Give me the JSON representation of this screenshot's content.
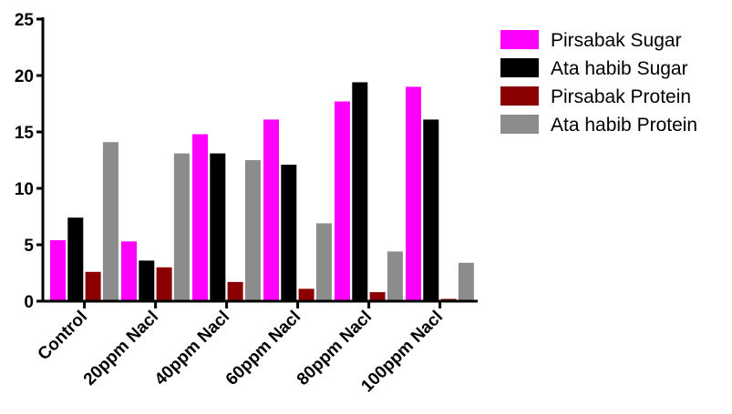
{
  "chart_data": {
    "type": "bar",
    "title": "",
    "xlabel": "",
    "ylabel": "",
    "categories": [
      "Control",
      "20ppm Nacl",
      "40ppm Nacl",
      "60ppm Nacl",
      "80ppm Nacl",
      "100ppm Nacl"
    ],
    "ylim": [
      0,
      25
    ],
    "yticks": [
      0,
      5,
      10,
      15,
      20,
      25
    ],
    "grid": false,
    "legend_position": "top-right",
    "series": [
      {
        "name": "Pirsabak Sugar",
        "color": "#ff00ff",
        "values": [
          5.4,
          5.3,
          14.8,
          16.1,
          17.7,
          19.0
        ]
      },
      {
        "name": "Ata habib Sugar",
        "color": "#000000",
        "values": [
          7.4,
          3.6,
          13.1,
          12.1,
          19.4,
          16.1
        ]
      },
      {
        "name": "Pirsabak Protein",
        "color": "#8b0000",
        "values": [
          2.6,
          3.0,
          1.7,
          1.1,
          0.8,
          0.2
        ]
      },
      {
        "name": "Ata habib Protein",
        "color": "#8c8c8c",
        "values": [
          14.1,
          13.1,
          12.5,
          6.9,
          4.4,
          3.4
        ]
      }
    ]
  }
}
